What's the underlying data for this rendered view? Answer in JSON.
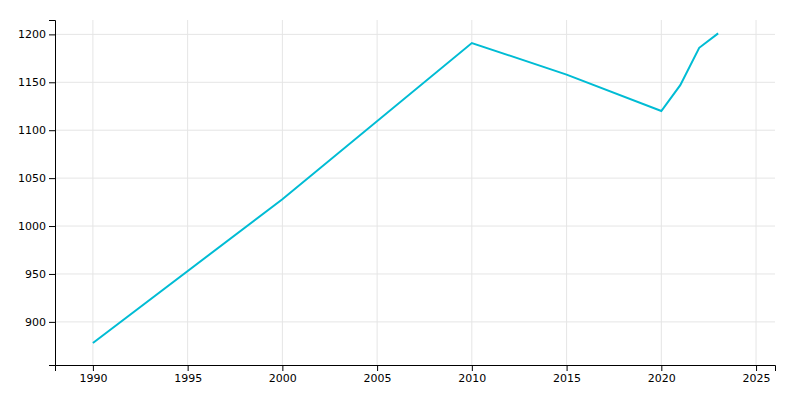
{
  "chart_data": {
    "type": "line",
    "x": [
      1990,
      2000,
      2010,
      2015,
      2020,
      2021,
      2022,
      2023
    ],
    "values": [
      878,
      1028,
      1191,
      1158,
      1120,
      1147,
      1186,
      1201
    ],
    "color": "#00bcd4",
    "xlim": [
      1988,
      2026
    ],
    "ylim": [
      855,
      1215
    ],
    "xticks": [
      1990,
      1995,
      2000,
      2005,
      2010,
      2015,
      2020,
      2025
    ],
    "yticks": [
      900,
      950,
      1000,
      1050,
      1100,
      1150,
      1200
    ],
    "grid": true
  }
}
